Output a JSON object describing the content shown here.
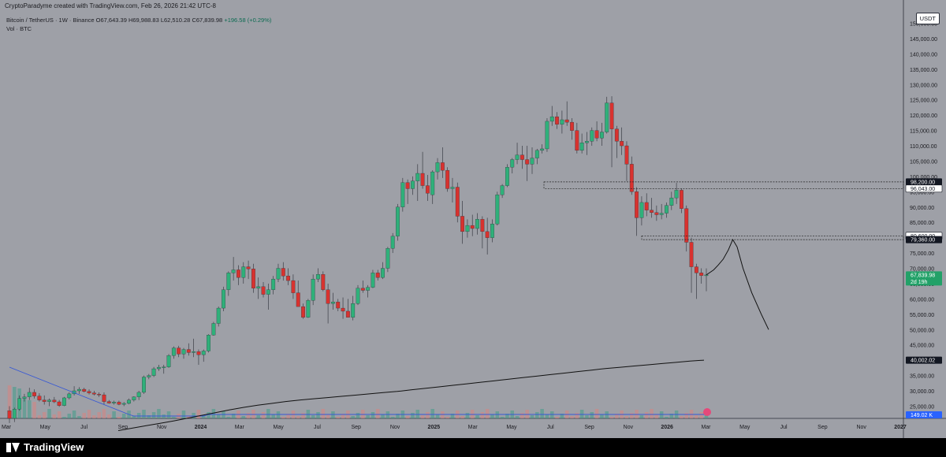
{
  "header": {
    "created_by": "CryptoParadyme created with TradingView.com, Feb 26, 2026 21:42 UTC-8"
  },
  "legend": {
    "symbol": "Bitcoin / TetherUS · 1W · Binance",
    "ohlc": "O67,643.39 H69,988.83 L62,510.28 C67,839.98",
    "change": "+196.58 (+0.29%)",
    "volume_label": "Vol · BTC"
  },
  "currency_badge": "USDT",
  "brand": "TradingView",
  "chart_data": {
    "type": "candlestick",
    "title": "Bitcoin / TetherUS · 1W · Binance",
    "interval": "1W",
    "y_axis_ticks": [
      25000,
      30000,
      35000,
      40000,
      45000,
      50000,
      55000,
      60000,
      65000,
      70000,
      75000,
      80000,
      85000,
      90000,
      95000,
      100000,
      105000,
      110000,
      115000,
      120000,
      125000,
      130000,
      135000,
      140000,
      145000,
      150000
    ],
    "y_tick_labels": [
      "25,000.00",
      "30,000.00",
      "35,000.00",
      "40,000.00",
      "45,000.00",
      "50,000.00",
      "55,000.00",
      "60,000.00",
      "65,000.00",
      "70,000.00",
      "75,000.00",
      "80,000.00",
      "85,000.00",
      "90,000.00",
      "95,000.00",
      "100,000.00",
      "105,000.00",
      "110,000.00",
      "115,000.00",
      "120,000.00",
      "125,000.00",
      "130,000.00",
      "135,000.00",
      "140,000.00",
      "145,000.00",
      "150,000.00"
    ],
    "ylim": [
      21000,
      154000
    ],
    "x_tick_labels": [
      "Mar",
      "May",
      "Jul",
      "Sep",
      "Nov",
      "2024",
      "Mar",
      "May",
      "Jul",
      "Sep",
      "Nov",
      "2025",
      "Mar",
      "May",
      "Jul",
      "Sep",
      "Nov",
      "2026",
      "Mar",
      "May",
      "Jul",
      "Sep",
      "Nov",
      "2027"
    ],
    "price_labels": [
      {
        "value": 98200,
        "text": "98,200.00",
        "style": "dark"
      },
      {
        "value": 96043,
        "text": "96,043.00",
        "style": "light"
      },
      {
        "value": 80600,
        "text": "80,600.00",
        "style": "light"
      },
      {
        "value": 79360,
        "text": "79,360.00",
        "style": "dark"
      },
      {
        "value": 67839.98,
        "text": "67,839.98",
        "style": "green",
        "sub": "2d 19h"
      },
      {
        "value": 40002.02,
        "text": "40,002.02",
        "style": "dark"
      }
    ],
    "volume_label": "149.02 K",
    "zones": [
      {
        "from": 96043,
        "to": 98200
      },
      {
        "from": 79360,
        "to": 80600
      }
    ],
    "candles_ohlc": [
      [
        23500,
        25000,
        19500,
        21000
      ],
      [
        21000,
        24500,
        19800,
        24000
      ],
      [
        24000,
        28500,
        23500,
        27500
      ],
      [
        27500,
        29000,
        26500,
        28000
      ],
      [
        28000,
        31000,
        27000,
        29500
      ],
      [
        29500,
        30500,
        27500,
        28300
      ],
      [
        28300,
        29200,
        26500,
        27000
      ],
      [
        27000,
        28500,
        25500,
        26500
      ],
      [
        26500,
        27500,
        25000,
        27000
      ],
      [
        27000,
        28000,
        26000,
        26400
      ],
      [
        26400,
        27000,
        24800,
        25200
      ],
      [
        25200,
        28000,
        25000,
        27700
      ],
      [
        27700,
        29500,
        27200,
        29000
      ],
      [
        29000,
        31500,
        28500,
        30000
      ],
      [
        30000,
        31200,
        29000,
        30500
      ],
      [
        30500,
        31000,
        29500,
        29800
      ],
      [
        29800,
        30500,
        28800,
        29300
      ],
      [
        29300,
        30000,
        28500,
        28900
      ],
      [
        28900,
        29500,
        28000,
        28700
      ],
      [
        28700,
        29500,
        25500,
        26500
      ],
      [
        26500,
        27000,
        25800,
        26000
      ],
      [
        26000,
        26800,
        25500,
        26300
      ],
      [
        26300,
        26800,
        25300,
        25600
      ],
      [
        25600,
        26300,
        25000,
        25900
      ],
      [
        25900,
        27500,
        25600,
        27000
      ],
      [
        27000,
        28200,
        26500,
        28000
      ],
      [
        28000,
        30000,
        27000,
        29500
      ],
      [
        29500,
        35000,
        29000,
        34500
      ],
      [
        34500,
        35500,
        33800,
        35000
      ],
      [
        35000,
        37800,
        34500,
        37200
      ],
      [
        37200,
        38500,
        36500,
        37700
      ],
      [
        37700,
        38500,
        35600,
        37800
      ],
      [
        37800,
        42000,
        37500,
        41500
      ],
      [
        41500,
        44500,
        40500,
        44000
      ],
      [
        44000,
        44700,
        41000,
        42000
      ],
      [
        42000,
        44000,
        40500,
        43500
      ],
      [
        43500,
        45500,
        41500,
        42500
      ],
      [
        42500,
        47000,
        41000,
        42800
      ],
      [
        42800,
        43500,
        38500,
        41800
      ],
      [
        41800,
        43500,
        39500,
        43000
      ],
      [
        43000,
        48500,
        42500,
        48200
      ],
      [
        48200,
        52500,
        48000,
        52000
      ],
      [
        52000,
        57500,
        51000,
        57000
      ],
      [
        57000,
        64000,
        56000,
        63000
      ],
      [
        63000,
        69000,
        61000,
        68500
      ],
      [
        68500,
        73700,
        66000,
        69500
      ],
      [
        69500,
        71000,
        64500,
        67000
      ],
      [
        67000,
        72000,
        65000,
        70500
      ],
      [
        70500,
        72500,
        66500,
        69800
      ],
      [
        69800,
        71500,
        62000,
        63500
      ],
      [
        63500,
        67000,
        60000,
        64000
      ],
      [
        64000,
        65500,
        60500,
        61500
      ],
      [
        61500,
        65000,
        56500,
        63000
      ],
      [
        63000,
        67500,
        61500,
        66500
      ],
      [
        66500,
        71500,
        65500,
        70000
      ],
      [
        70000,
        72000,
        66000,
        67500
      ],
      [
        67500,
        70000,
        64500,
        66000
      ],
      [
        66000,
        68000,
        60000,
        62000
      ],
      [
        62000,
        66000,
        58500,
        57500
      ],
      [
        57500,
        58500,
        53500,
        54000
      ],
      [
        54000,
        60000,
        53800,
        59500
      ],
      [
        59500,
        68000,
        58000,
        66500
      ],
      [
        66500,
        70000,
        65500,
        68000
      ],
      [
        68000,
        69000,
        62500,
        63000
      ],
      [
        63000,
        65000,
        52000,
        58500
      ],
      [
        58500,
        62000,
        56500,
        59000
      ],
      [
        59000,
        60000,
        56000,
        57000
      ],
      [
        57000,
        60500,
        53500,
        56000
      ],
      [
        56000,
        60000,
        55000,
        54000
      ],
      [
        54000,
        61000,
        53000,
        58500
      ],
      [
        58500,
        64500,
        58000,
        63500
      ],
      [
        63500,
        66000,
        62000,
        62800
      ],
      [
        62800,
        64500,
        60500,
        63800
      ],
      [
        63800,
        69500,
        63500,
        68500
      ],
      [
        68500,
        69500,
        66000,
        67000
      ],
      [
        67000,
        72000,
        66500,
        70000
      ],
      [
        70000,
        77000,
        68800,
        76500
      ],
      [
        76500,
        81500,
        75000,
        80500
      ],
      [
        80500,
        91000,
        79000,
        90000
      ],
      [
        90000,
        99500,
        88500,
        98000
      ],
      [
        98000,
        99000,
        91000,
        96000
      ],
      [
        96000,
        100000,
        94000,
        98500
      ],
      [
        98500,
        104000,
        92000,
        101000
      ],
      [
        101000,
        108000,
        96000,
        97000
      ],
      [
        97000,
        100500,
        92000,
        94500
      ],
      [
        94000,
        102000,
        91000,
        101500
      ],
      [
        101500,
        106000,
        99000,
        104500
      ],
      [
        104500,
        109500,
        99500,
        102000
      ],
      [
        102000,
        103000,
        95000,
        96000
      ],
      [
        96000,
        99500,
        91500,
        96500
      ],
      [
        96500,
        98000,
        85000,
        87000
      ],
      [
        87000,
        92000,
        78000,
        82000
      ],
      [
        82000,
        86000,
        80000,
        84000
      ],
      [
        84000,
        87500,
        80500,
        83000
      ],
      [
        83000,
        88000,
        81000,
        86000
      ],
      [
        86000,
        87000,
        76500,
        82000
      ],
      [
        82000,
        86500,
        74500,
        80000
      ],
      [
        80000,
        86000,
        78500,
        84500
      ],
      [
        84500,
        95000,
        84000,
        94000
      ],
      [
        94000,
        97500,
        93000,
        97000
      ],
      [
        97000,
        104000,
        96500,
        103000
      ],
      [
        103000,
        106000,
        101000,
        105500
      ],
      [
        105500,
        111000,
        104000,
        107000
      ],
      [
        107000,
        110000,
        102500,
        105500
      ],
      [
        105500,
        110000,
        98500,
        104000
      ],
      [
        104000,
        109500,
        100800,
        106000
      ],
      [
        106000,
        109000,
        104000,
        108500
      ],
      [
        108500,
        110500,
        107500,
        109000
      ],
      [
        109000,
        119000,
        108000,
        118000
      ],
      [
        118000,
        123000,
        116500,
        119500
      ],
      [
        119500,
        121000,
        115500,
        117000
      ],
      [
        117000,
        121500,
        114000,
        118500
      ],
      [
        118500,
        124500,
        116500,
        117700
      ],
      [
        117700,
        119000,
        112000,
        115000
      ],
      [
        115000,
        117500,
        107500,
        108500
      ],
      [
        108500,
        114000,
        107500,
        111000
      ],
      [
        111000,
        114500,
        107000,
        111500
      ],
      [
        111500,
        116000,
        110000,
        115000
      ],
      [
        115000,
        118000,
        111500,
        112500
      ],
      [
        112500,
        117500,
        110000,
        114500
      ],
      [
        114500,
        126000,
        114000,
        124000
      ],
      [
        124000,
        126200,
        103000,
        115500
      ],
      [
        115500,
        116500,
        106000,
        111500
      ],
      [
        111500,
        116000,
        107000,
        110000
      ],
      [
        110000,
        111500,
        98500,
        104000
      ],
      [
        104000,
        106500,
        94000,
        95000
      ],
      [
        95000,
        96500,
        80600,
        86500
      ],
      [
        86500,
        93500,
        84000,
        91500
      ],
      [
        91500,
        94500,
        87000,
        89000
      ],
      [
        89000,
        93000,
        86500,
        88200
      ],
      [
        88200,
        90500,
        85500,
        87500
      ],
      [
        87500,
        91000,
        86000,
        88000
      ],
      [
        88000,
        91500,
        86500,
        90500
      ],
      [
        90500,
        95000,
        89000,
        93000
      ],
      [
        93000,
        97900,
        91000,
        95500
      ],
      [
        95500,
        96000,
        88000,
        89500
      ],
      [
        89500,
        90500,
        75500,
        78500
      ],
      [
        78500,
        80000,
        62000,
        70500
      ],
      [
        70500,
        71500,
        60000,
        68500
      ],
      [
        68500,
        70000,
        65000,
        67643
      ],
      [
        67643,
        69989,
        62510,
        67840
      ]
    ],
    "sma_ma200": [
      17000,
      17800,
      18600,
      19400,
      20200,
      21100,
      22000,
      22900,
      23800,
      24600,
      25300,
      25900,
      26500,
      27000,
      27400,
      27800,
      28200,
      28600,
      29000,
      29400,
      29800,
      30300,
      30800,
      31300,
      31800,
      32300,
      32800,
      33300,
      33800,
      34300,
      34800,
      35300,
      35800,
      36300,
      36800,
      37300,
      37700,
      38100,
      38500,
      38900,
      39300,
      39700,
      40002
    ],
    "forecast_path": [
      [
        67840,
        0
      ],
      [
        69500,
        1
      ],
      [
        71000,
        1.6
      ],
      [
        73000,
        2.3
      ],
      [
        76000,
        3
      ],
      [
        79360,
        3.6
      ],
      [
        77000,
        4.2
      ],
      [
        70000,
        5
      ],
      [
        62000,
        6.2
      ],
      [
        55000,
        7.5
      ],
      [
        50000,
        8.5
      ]
    ]
  }
}
